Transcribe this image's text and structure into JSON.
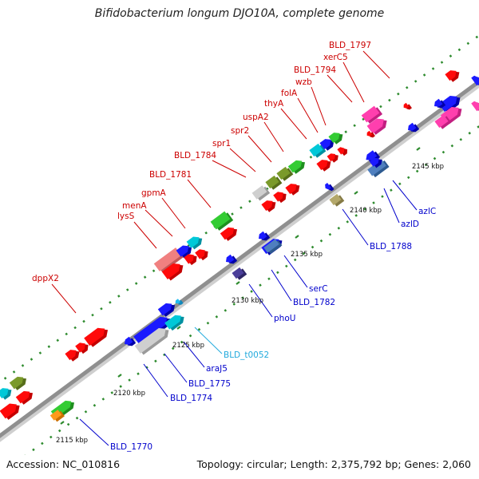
{
  "title": "Bifidobacterium longum DJO10A, complete genome",
  "footer": {
    "accession": "Accession: NC_010816",
    "summary": "Topology: circular; Length: 2,375,792 bp; Genes: 2,060"
  },
  "colors": {
    "backbone": "#8c8c8c",
    "dots": "#2e8b2e",
    "top_label": "#cc0000",
    "bottom_label": "#0000cc",
    "trna_label": "#22aadd"
  },
  "ticks": [
    {
      "id": "t2115",
      "label": "2115 kbp"
    },
    {
      "id": "t2120",
      "label": "2120 kbp"
    },
    {
      "id": "t2125",
      "label": "2125 kbp"
    },
    {
      "id": "t2130",
      "label": "2130 kbp"
    },
    {
      "id": "t2135",
      "label": "2135 kbp"
    },
    {
      "id": "t2140",
      "label": "2140 kbp"
    },
    {
      "id": "t2145",
      "label": "2145 kbp"
    }
  ],
  "top_labels": [
    {
      "id": "dppX2",
      "text": "dppX2"
    },
    {
      "id": "lysS",
      "text": "lysS"
    },
    {
      "id": "menA",
      "text": "menA"
    },
    {
      "id": "gpmA",
      "text": "gpmA"
    },
    {
      "id": "BLD_1781",
      "text": "BLD_1781"
    },
    {
      "id": "BLD_1784",
      "text": "BLD_1784"
    },
    {
      "id": "spr1",
      "text": "spr1"
    },
    {
      "id": "spr2",
      "text": "spr2"
    },
    {
      "id": "uspA2",
      "text": "uspA2"
    },
    {
      "id": "thyA",
      "text": "thyA"
    },
    {
      "id": "folA",
      "text": "folA"
    },
    {
      "id": "wzb",
      "text": "wzb"
    },
    {
      "id": "BLD_1794",
      "text": "BLD_1794"
    },
    {
      "id": "xerC5",
      "text": "xerC5"
    },
    {
      "id": "BLD_1797",
      "text": "BLD_1797"
    }
  ],
  "bottom_labels": [
    {
      "id": "BLD_1770",
      "text": "BLD_1770"
    },
    {
      "id": "BLD_1774",
      "text": "BLD_1774"
    },
    {
      "id": "BLD_1775",
      "text": "BLD_1775"
    },
    {
      "id": "araJ5",
      "text": "araJ5"
    },
    {
      "id": "BLD_t0052",
      "text": "BLD_t0052"
    },
    {
      "id": "phoU",
      "text": "phoU"
    },
    {
      "id": "BLD_1782",
      "text": "BLD_1782"
    },
    {
      "id": "serC",
      "text": "serC"
    },
    {
      "id": "BLD_1788",
      "text": "BLD_1788"
    },
    {
      "id": "azlD",
      "text": "azlD"
    },
    {
      "id": "azlC",
      "text": "azlC"
    }
  ]
}
